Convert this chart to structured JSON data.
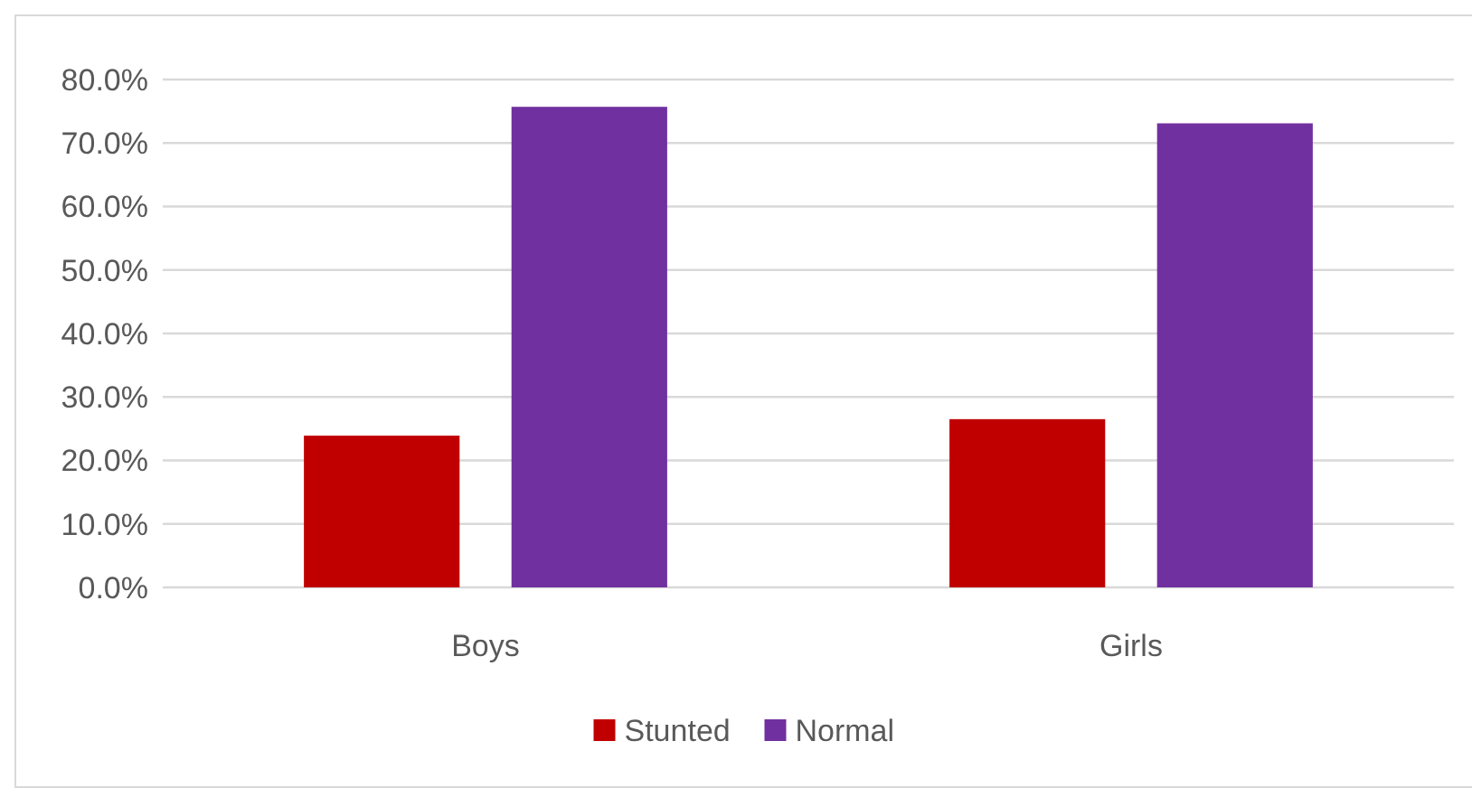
{
  "chart_data": {
    "type": "bar",
    "categories": [
      "Boys",
      "Girls"
    ],
    "series": [
      {
        "name": "Stunted",
        "color": "#c00000",
        "values": [
          23.9,
          26.5
        ]
      },
      {
        "name": "Normal",
        "color": "#7030a0",
        "values": [
          75.7,
          73.1
        ]
      }
    ],
    "ylim": [
      0,
      80
    ],
    "yticks": [
      {
        "value": 0,
        "label": "0.0%"
      },
      {
        "value": 10,
        "label": "10.0%"
      },
      {
        "value": 20,
        "label": "20.0%"
      },
      {
        "value": 30,
        "label": "30.0%"
      },
      {
        "value": 40,
        "label": "40.0%"
      },
      {
        "value": 50,
        "label": "50.0%"
      },
      {
        "value": 60,
        "label": "60.0%"
      },
      {
        "value": 70,
        "label": "70.0%"
      },
      {
        "value": 80,
        "label": "80.0%"
      }
    ],
    "grid": "y",
    "legend": "bottom"
  }
}
